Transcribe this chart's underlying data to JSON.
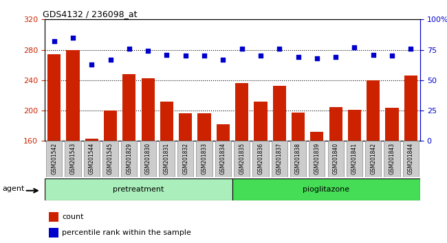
{
  "title": "GDS4132 / 236098_at",
  "categories": [
    "GSM201542",
    "GSM201543",
    "GSM201544",
    "GSM201545",
    "GSM201829",
    "GSM201830",
    "GSM201831",
    "GSM201832",
    "GSM201833",
    "GSM201834",
    "GSM201835",
    "GSM201836",
    "GSM201837",
    "GSM201838",
    "GSM201839",
    "GSM201840",
    "GSM201841",
    "GSM201842",
    "GSM201843",
    "GSM201844"
  ],
  "bar_values": [
    274,
    280,
    163,
    200,
    248,
    243,
    212,
    196,
    196,
    182,
    236,
    212,
    233,
    197,
    172,
    205,
    201,
    240,
    204,
    246
  ],
  "dot_values": [
    82,
    85,
    63,
    67,
    76,
    74,
    71,
    70,
    70,
    67,
    76,
    70,
    76,
    69,
    68,
    69,
    77,
    71,
    70,
    76
  ],
  "ylim_left": [
    160,
    320
  ],
  "ylim_right": [
    0,
    100
  ],
  "yticks_left": [
    160,
    200,
    240,
    280,
    320
  ],
  "yticks_right": [
    0,
    25,
    50,
    75,
    100
  ],
  "bar_color": "#cc2200",
  "dot_color": "#0000cc",
  "pretreatment_group": [
    0,
    9
  ],
  "pioglitazone_group": [
    10,
    19
  ],
  "group_color_pre": "#aaeebb",
  "group_color_pio": "#44dd55",
  "group_label_pre": "pretreatment",
  "group_label_pio": "pioglitazone",
  "agent_label": "agent",
  "legend_count": "count",
  "legend_pct": "percentile rank within the sample",
  "tick_label_color": "#cc2200",
  "right_tick_color": "#0000cc",
  "xtick_bg_color": "#cccccc",
  "xtick_border_color": "#888888"
}
